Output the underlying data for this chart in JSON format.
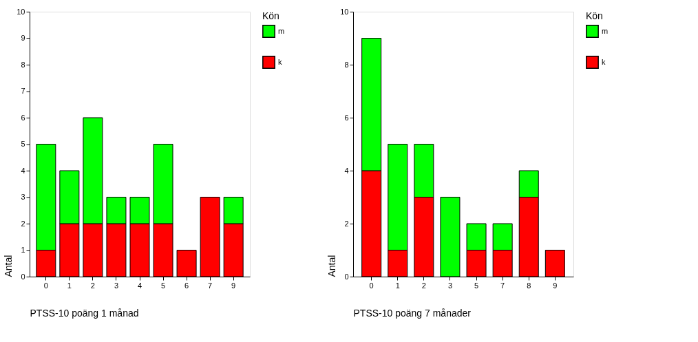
{
  "chart_data": [
    {
      "type": "bar",
      "stacked": true,
      "xlabel": "PTSS-10 poäng 1 månad",
      "ylabel": "Antal",
      "legend_title": "Kön",
      "legend": "right",
      "grid": false,
      "categories": [
        "0",
        "1",
        "2",
        "3",
        "4",
        "5",
        "6",
        "7",
        "9"
      ],
      "ylim": [
        0,
        10
      ],
      "yticks": [
        0,
        1,
        2,
        3,
        4,
        5,
        6,
        7,
        8,
        9,
        10
      ],
      "series": [
        {
          "name": "k",
          "color": "#ff0000",
          "values": [
            1,
            2,
            2,
            2,
            2,
            2,
            1,
            3,
            2
          ]
        },
        {
          "name": "m",
          "color": "#00ff00",
          "values": [
            4,
            2,
            4,
            1,
            1,
            3,
            0,
            0,
            1
          ]
        }
      ]
    },
    {
      "type": "bar",
      "stacked": true,
      "xlabel": "PTSS-10 poäng 7 månader",
      "ylabel": "Antal",
      "legend_title": "Kön",
      "legend": "right",
      "grid": false,
      "categories": [
        "0",
        "1",
        "2",
        "3",
        "5",
        "7",
        "8",
        "9"
      ],
      "ylim": [
        0,
        10
      ],
      "yticks": [
        0,
        2,
        4,
        6,
        8,
        10
      ],
      "series": [
        {
          "name": "k",
          "color": "#ff0000",
          "values": [
            4,
            1,
            3,
            0,
            1,
            1,
            3,
            1
          ]
        },
        {
          "name": "m",
          "color": "#00ff00",
          "values": [
            5,
            4,
            2,
            3,
            1,
            1,
            1,
            0
          ]
        }
      ]
    }
  ]
}
